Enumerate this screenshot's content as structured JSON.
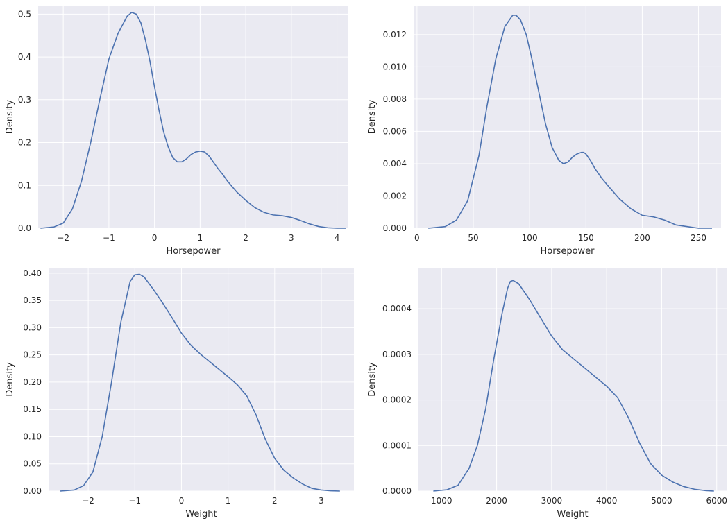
{
  "chart_data": [
    {
      "type": "line",
      "xlabel": "Horsepower",
      "ylabel": "Density",
      "xlim": [
        -2.55,
        4.25
      ],
      "ylim": [
        0,
        0.52
      ],
      "xticks": [
        -2,
        -1,
        0,
        1,
        2,
        3,
        4
      ],
      "yticks": [
        0.0,
        0.1,
        0.2,
        0.3,
        0.4,
        0.5
      ],
      "ytick_labels": [
        "0.0",
        "0.1",
        "0.2",
        "0.3",
        "0.4",
        "0.5"
      ],
      "xtick_labels": [
        "−2",
        "−1",
        "0",
        "1",
        "2",
        "3",
        "4"
      ],
      "grid": true,
      "color": "#4c72b0",
      "series": [
        {
          "x": [
            -2.5,
            -2.2,
            -2.0,
            -1.8,
            -1.6,
            -1.4,
            -1.2,
            -1.0,
            -0.8,
            -0.6,
            -0.5,
            -0.4,
            -0.3,
            -0.2,
            -0.1,
            0.0,
            0.1,
            0.2,
            0.3,
            0.4,
            0.5,
            0.6,
            0.7,
            0.8,
            0.9,
            1.0,
            1.1,
            1.2,
            1.3,
            1.4,
            1.5,
            1.6,
            1.8,
            2.0,
            2.2,
            2.4,
            2.6,
            2.8,
            3.0,
            3.2,
            3.4,
            3.6,
            3.8,
            4.0,
            4.2
          ],
          "y": [
            0.0,
            0.003,
            0.012,
            0.045,
            0.11,
            0.2,
            0.3,
            0.395,
            0.455,
            0.495,
            0.504,
            0.5,
            0.48,
            0.44,
            0.39,
            0.33,
            0.275,
            0.225,
            0.19,
            0.165,
            0.155,
            0.155,
            0.162,
            0.172,
            0.178,
            0.18,
            0.178,
            0.168,
            0.153,
            0.138,
            0.125,
            0.11,
            0.085,
            0.065,
            0.048,
            0.037,
            0.031,
            0.029,
            0.025,
            0.018,
            0.01,
            0.004,
            0.001,
            0.0,
            0.0
          ]
        }
      ]
    },
    {
      "type": "line",
      "xlabel": "Horsepower",
      "ylabel": "Density",
      "xlim": [
        -3,
        270
      ],
      "ylim": [
        0,
        0.0138
      ],
      "xticks": [
        0,
        50,
        100,
        150,
        200,
        250
      ],
      "yticks": [
        0.0,
        0.002,
        0.004,
        0.006,
        0.008,
        0.01,
        0.012
      ],
      "ytick_labels": [
        "0.000",
        "0.002",
        "0.004",
        "0.006",
        "0.008",
        "0.010",
        "0.012"
      ],
      "xtick_labels": [
        "0",
        "50",
        "100",
        "150",
        "200",
        "250"
      ],
      "grid": true,
      "color": "#4c72b0",
      "series": [
        {
          "x": [
            10,
            25,
            35,
            45,
            55,
            62,
            70,
            78,
            85,
            88,
            92,
            97,
            102,
            108,
            114,
            120,
            126,
            130,
            134,
            138,
            142,
            146,
            148,
            150,
            154,
            158,
            164,
            170,
            180,
            190,
            200,
            210,
            220,
            230,
            240,
            250,
            262
          ],
          "y": [
            0.0,
            0.0001,
            0.0005,
            0.0017,
            0.0045,
            0.0075,
            0.0105,
            0.0125,
            0.0132,
            0.0132,
            0.0129,
            0.012,
            0.0105,
            0.0085,
            0.0065,
            0.005,
            0.0042,
            0.004,
            0.0041,
            0.0044,
            0.0046,
            0.0047,
            0.0047,
            0.0046,
            0.0042,
            0.0037,
            0.0031,
            0.0026,
            0.0018,
            0.0012,
            0.0008,
            0.0007,
            0.0005,
            0.0002,
            0.0001,
            0.0,
            0.0
          ]
        }
      ]
    },
    {
      "type": "line",
      "xlabel": "Weight",
      "ylabel": "Density",
      "xlim": [
        -2.85,
        3.7
      ],
      "ylim": [
        0,
        0.41
      ],
      "xticks": [
        -2,
        -1,
        0,
        1,
        2,
        3
      ],
      "yticks": [
        0.0,
        0.05,
        0.1,
        0.15,
        0.2,
        0.25,
        0.3,
        0.35,
        0.4
      ],
      "ytick_labels": [
        "0.00",
        "0.05",
        "0.10",
        "0.15",
        "0.20",
        "0.25",
        "0.30",
        "0.35",
        "0.40"
      ],
      "xtick_labels": [
        "−2",
        "−1",
        "0",
        "1",
        "2",
        "3"
      ],
      "grid": true,
      "color": "#4c72b0",
      "series": [
        {
          "x": [
            -2.6,
            -2.3,
            -2.1,
            -1.9,
            -1.7,
            -1.5,
            -1.3,
            -1.1,
            -1.0,
            -0.9,
            -0.8,
            -0.6,
            -0.4,
            -0.2,
            0.0,
            0.2,
            0.4,
            0.6,
            0.8,
            1.0,
            1.2,
            1.4,
            1.6,
            1.8,
            2.0,
            2.2,
            2.4,
            2.6,
            2.8,
            3.0,
            3.2,
            3.4
          ],
          "y": [
            0.0,
            0.002,
            0.01,
            0.035,
            0.1,
            0.2,
            0.31,
            0.385,
            0.397,
            0.398,
            0.393,
            0.37,
            0.345,
            0.318,
            0.29,
            0.268,
            0.252,
            0.238,
            0.224,
            0.21,
            0.195,
            0.175,
            0.14,
            0.095,
            0.06,
            0.038,
            0.024,
            0.013,
            0.005,
            0.002,
            0.0005,
            0.0
          ]
        }
      ]
    },
    {
      "type": "line",
      "xlabel": "Weight",
      "ylabel": "Density",
      "xlim": [
        580,
        6180
      ],
      "ylim": [
        0,
        0.00049
      ],
      "xticks": [
        1000,
        2000,
        3000,
        4000,
        5000,
        6000
      ],
      "yticks": [
        0.0,
        0.0001,
        0.0002,
        0.0003,
        0.0004
      ],
      "ytick_labels": [
        "0.0000",
        "0.0001",
        "0.0002",
        "0.0003",
        "0.0004"
      ],
      "xtick_labels": [
        "1000",
        "2000",
        "3000",
        "4000",
        "5000",
        "6000"
      ],
      "grid": true,
      "color": "#4c72b0",
      "series": [
        {
          "x": [
            850,
            1100,
            1300,
            1500,
            1650,
            1800,
            1950,
            2100,
            2200,
            2250,
            2300,
            2400,
            2600,
            2800,
            3000,
            3200,
            3400,
            3600,
            3800,
            4000,
            4200,
            4400,
            4600,
            4800,
            5000,
            5200,
            5400,
            5600,
            5800,
            5950
          ],
          "y": [
            0.0,
            3e-06,
            1.3e-05,
            5e-05,
            0.0001,
            0.00018,
            0.00029,
            0.00039,
            0.000445,
            0.00046,
            0.000462,
            0.000455,
            0.00042,
            0.00038,
            0.00034,
            0.00031,
            0.00029,
            0.00027,
            0.00025,
            0.00023,
            0.000205,
            0.00016,
            0.000105,
            6e-05,
            3.5e-05,
            2e-05,
            1e-05,
            4e-06,
            1e-06,
            0.0
          ]
        }
      ]
    }
  ]
}
